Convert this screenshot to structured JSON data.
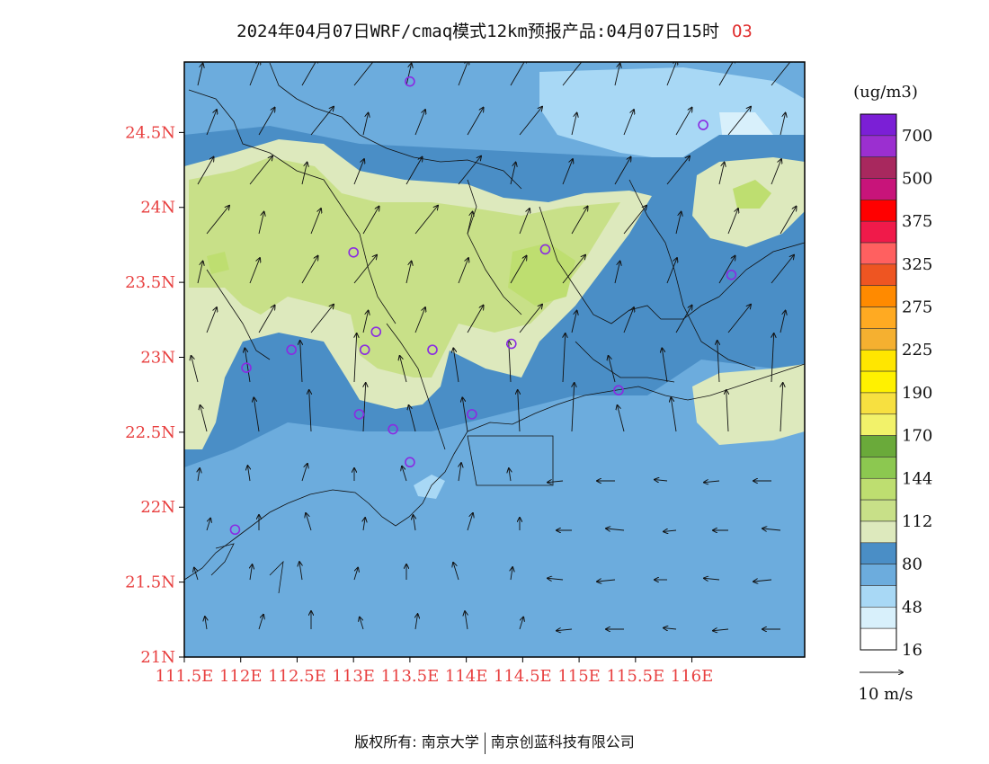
{
  "title": {
    "main": "2024年04月07日WRF/cmaq模式12km预报产品:04月07日15时",
    "species": "O3"
  },
  "map": {
    "lat_labels": [
      "24.5N",
      "24N",
      "23.5N",
      "23N",
      "22.5N",
      "22N",
      "21.5N",
      "21N"
    ],
    "lon_labels": [
      "111.5E",
      "112E",
      "112.5E",
      "113E",
      "113.5E",
      "114E",
      "114.5E",
      "115E",
      "115.5E",
      "116E"
    ],
    "lat_values": [
      24.5,
      24.0,
      23.5,
      23.0,
      22.5,
      22.0,
      21.5,
      21.0
    ],
    "lon_values": [
      111.5,
      112.0,
      112.5,
      113.0,
      113.5,
      114.0,
      114.5,
      115.0,
      115.5,
      116.0
    ]
  },
  "legend": {
    "unit": "(ug/m3)",
    "labels": [
      "700",
      "500",
      "375",
      "325",
      "275",
      "225",
      "190",
      "170",
      "144",
      "112",
      "80",
      "48",
      "16"
    ],
    "colors": [
      "#7b1fd6",
      "#9b2fd0",
      "#a8285e",
      "#c8147a",
      "#ff0000",
      "#f01a4a",
      "#ff6060",
      "#ee5522",
      "#ff8a00",
      "#ffaa22",
      "#f5b030",
      "#ffe600",
      "#fff100",
      "#f7e040",
      "#f2f26a",
      "#6aaa3a",
      "#8cc850",
      "#bede70",
      "#c8e088",
      "#dde9bd",
      "#4a8ec6",
      "#6cacdd",
      "#a8d8f5",
      "#d8f0fb",
      "#ffffff"
    ]
  },
  "wind": {
    "reference_label": "10 m/s"
  },
  "stations": [
    [
      113.5,
      24.84
    ],
    [
      116.1,
      24.55
    ],
    [
      113.0,
      23.7
    ],
    [
      114.7,
      23.72
    ],
    [
      116.35,
      23.55
    ],
    [
      112.45,
      23.05
    ],
    [
      113.1,
      23.05
    ],
    [
      113.2,
      23.17
    ],
    [
      113.7,
      23.05
    ],
    [
      114.4,
      23.09
    ],
    [
      112.05,
      22.93
    ],
    [
      115.35,
      22.78
    ],
    [
      113.05,
      22.62
    ],
    [
      113.35,
      22.52
    ],
    [
      114.05,
      22.62
    ],
    [
      113.5,
      22.3
    ],
    [
      111.95,
      21.85
    ]
  ],
  "footer": {
    "left": "版权所有: 南京大学",
    "right": "南京创蓝科技有限公司"
  }
}
